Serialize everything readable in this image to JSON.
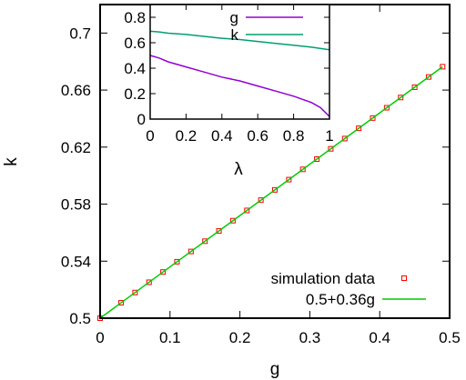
{
  "chart_data": [
    {
      "type": "scatter",
      "xlabel": "g",
      "ylabel": "k",
      "xlim": [
        0,
        0.5
      ],
      "ylim": [
        0.5,
        0.72
      ],
      "xticks": [
        "0",
        "0.1",
        "0.2",
        "0.3",
        "0.4",
        "0.5"
      ],
      "xtick_values": [
        0,
        0.1,
        0.2,
        0.3,
        0.4,
        0.5
      ],
      "yticks": [
        "0.5",
        "0.54",
        "0.58",
        "0.62",
        "0.66",
        "0.7"
      ],
      "ytick_values": [
        0.5,
        0.54,
        0.58,
        0.62,
        0.66,
        0.7
      ],
      "legend_position": "bottom-right",
      "series": [
        {
          "name": "simulation data",
          "kind": "points",
          "marker": "open-square",
          "color": "#ff0000",
          "x": [
            0,
            0.03,
            0.05,
            0.07,
            0.09,
            0.11,
            0.13,
            0.15,
            0.17,
            0.19,
            0.21,
            0.23,
            0.25,
            0.27,
            0.29,
            0.31,
            0.33,
            0.35,
            0.37,
            0.39,
            0.41,
            0.43,
            0.45,
            0.47,
            0.49
          ],
          "y": [
            0.5,
            0.5108,
            0.518,
            0.5252,
            0.5324,
            0.5396,
            0.5468,
            0.554,
            0.5612,
            0.5684,
            0.5756,
            0.5828,
            0.59,
            0.5972,
            0.6044,
            0.6116,
            0.6188,
            0.626,
            0.6332,
            0.6404,
            0.6476,
            0.6548,
            0.662,
            0.6692,
            0.6764
          ]
        },
        {
          "name": "0.5+0.36g",
          "kind": "line",
          "color": "#00cc00",
          "x": [
            0,
            0.49
          ],
          "y": [
            0.5,
            0.6764
          ]
        }
      ]
    },
    {
      "type": "line",
      "xlabel": "λ",
      "ylabel": "",
      "xlim": [
        0,
        1
      ],
      "ylim": [
        0,
        0.9
      ],
      "xticks": [
        "0",
        "0.2",
        "0.4",
        "0.6",
        "0.8",
        "1"
      ],
      "xtick_values": [
        0,
        0.2,
        0.4,
        0.6,
        0.8,
        1
      ],
      "yticks": [
        "0",
        "0.2",
        "0.4",
        "0.6",
        "0.8"
      ],
      "ytick_values": [
        0,
        0.2,
        0.4,
        0.6,
        0.8
      ],
      "legend_position": "top-right",
      "series": [
        {
          "name": "g",
          "color": "#9400d3",
          "x": [
            0,
            0.05,
            0.1,
            0.2,
            0.3,
            0.4,
            0.5,
            0.6,
            0.7,
            0.8,
            0.9,
            0.95,
            1.0
          ],
          "y": [
            0.5,
            0.48,
            0.45,
            0.41,
            0.37,
            0.33,
            0.3,
            0.26,
            0.22,
            0.18,
            0.13,
            0.09,
            0.02
          ]
        },
        {
          "name": "k",
          "color": "#009e73",
          "x": [
            0,
            0.05,
            0.1,
            0.2,
            0.3,
            0.4,
            0.5,
            0.6,
            0.7,
            0.8,
            0.9,
            1.0
          ],
          "y": [
            0.69,
            0.685,
            0.675,
            0.665,
            0.65,
            0.635,
            0.625,
            0.61,
            0.595,
            0.58,
            0.565,
            0.545
          ]
        }
      ]
    }
  ]
}
